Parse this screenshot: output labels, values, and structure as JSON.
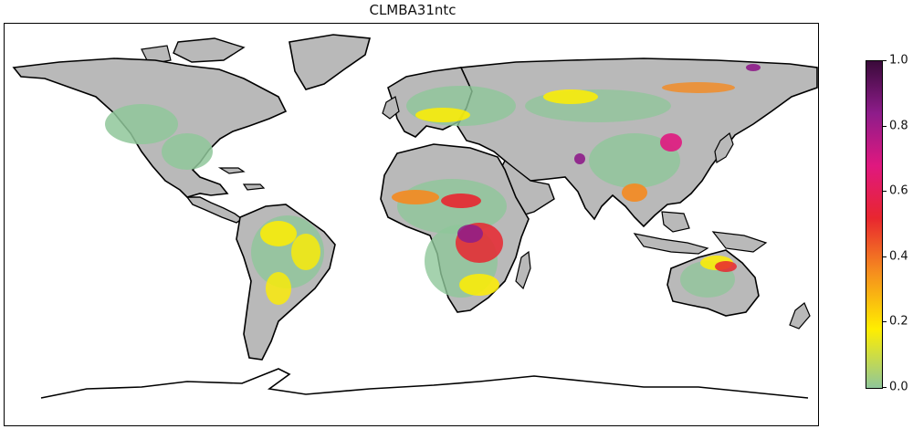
{
  "title": "CLMBA31ntc",
  "colorbar": {
    "ticks": [
      "0.0",
      "0.2",
      "0.4",
      "0.6",
      "0.8",
      "1.0"
    ],
    "range": [
      0.0,
      1.0
    ],
    "colors": [
      "#8fc79a",
      "#ffee00",
      "#f58a1f",
      "#e8262f",
      "#e0187f",
      "#8e1c8a",
      "#3a0a3a"
    ]
  },
  "map": {
    "projection": "PlateCarree",
    "land_color": "#b9b9b9",
    "ocean_color": "#ffffff",
    "coastline_color": "#000000"
  }
}
